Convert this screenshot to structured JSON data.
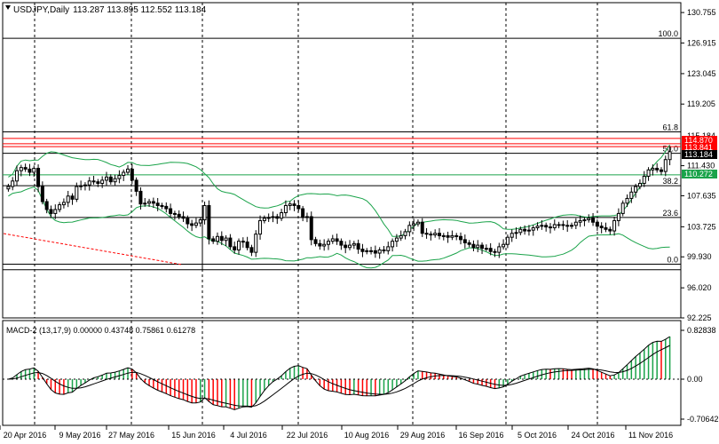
{
  "header": {
    "title": "USDJPY,Daily",
    "ohlc": "113.287 113.895 112.552 113.184"
  },
  "macd_header": {
    "label": "MACD-2 (13,17,9) 0.00000 0.43748 0.75861 0.61278"
  },
  "price_axis": [
    "130.755",
    "126.915",
    "123.045",
    "119.205",
    "115.184",
    "111.430",
    "107.635",
    "103.725",
    "99.930",
    "96.020",
    "92.225"
  ],
  "macd_axis": [
    "0.82838",
    "0.00",
    "-0.70642"
  ],
  "date_axis": [
    "20 Apr 2016",
    "9 May 2016",
    "27 May 2016",
    "15 Jun 2016",
    "4 Jul 2016",
    "22 Jul 2016",
    "10 Aug 2016",
    "29 Aug 2016",
    "16 Sep 2016",
    "5 Oct 2016",
    "24 Oct 2016",
    "11 Nov 2016"
  ],
  "fib_levels": [
    {
      "label": "100.0",
      "price": 127.5
    },
    {
      "label": "61.8",
      "price": 115.7
    },
    {
      "label": "50.0",
      "price": 113.0
    },
    {
      "label": "38.2",
      "price": 108.9
    },
    {
      "label": "23.6",
      "price": 104.9
    },
    {
      "label": "0.0",
      "price": 99.0
    }
  ],
  "price_tags": [
    {
      "text": "114.870",
      "price": 114.87,
      "color": "#ff0000"
    },
    {
      "text": "113.841",
      "price": 113.841,
      "color": "#ff0000"
    },
    {
      "text": "113.184",
      "price": 113.184,
      "color": "#000000"
    },
    {
      "text": "110.272",
      "price": 110.272,
      "color": "#1aa34a"
    }
  ],
  "colors": {
    "bull_candle": "#000000",
    "bear_candle": "#000000",
    "bollinger": "#1aa34a",
    "fib_line": "#000000",
    "red_lines": "#ff0000",
    "green_line": "#1aa34a",
    "macd_up": "#1aa34a",
    "macd_down": "#ff0000",
    "trend_dotted": "#ff0000"
  },
  "chart_data": {
    "type": "candlestick",
    "symbol": "USDJPY",
    "timeframe": "Daily",
    "ylim": [
      92.225,
      132.0
    ],
    "closes": [
      108.8,
      109.5,
      110.8,
      111.2,
      111.0,
      110.6,
      111.1,
      108.8,
      106.9,
      105.9,
      105.4,
      105.9,
      106.5,
      106.8,
      107.6,
      107.2,
      108.8,
      108.9,
      109.0,
      109.5,
      109.4,
      109.2,
      109.6,
      110.0,
      109.4,
      109.8,
      110.2,
      110.6,
      111.0,
      109.6,
      108.2,
      106.6,
      106.7,
      106.9,
      106.7,
      106.4,
      106.3,
      106.0,
      105.4,
      105.3,
      105.0,
      104.8,
      104.1,
      103.9,
      104.2,
      104.6,
      106.4,
      102.2,
      101.9,
      102.5,
      102.0,
      102.3,
      101.2,
      100.8,
      101.9,
      101.8,
      101.1,
      100.5,
      102.8,
      104.5,
      104.8,
      104.9,
      105.0,
      104.8,
      105.5,
      106.4,
      106.6,
      106.4,
      106.0,
      104.9,
      105.0,
      102.1,
      101.6,
      101.3,
      101.5,
      101.9,
      102.2,
      101.9,
      101.4,
      101.1,
      101.4,
      101.6,
      100.9,
      100.6,
      100.7,
      100.7,
      100.4,
      100.8,
      100.7,
      101.2,
      101.9,
      102.3,
      102.6,
      103.1,
      103.9,
      104.1,
      104.3,
      102.9,
      102.8,
      102.7,
      102.9,
      102.6,
      102.6,
      102.4,
      102.6,
      102.5,
      102.1,
      101.7,
      101.5,
      101.1,
      101.4,
      101.0,
      101.0,
      100.6,
      100.5,
      101.2,
      101.5,
      102.4,
      102.9,
      103.0,
      103.4,
      103.2,
      103.3,
      103.6,
      103.8,
      103.9,
      103.7,
      103.6,
      104.0,
      104.0,
      103.9,
      103.8,
      103.9,
      104.3,
      104.5,
      104.6,
      104.8,
      104.3,
      103.8,
      103.6,
      103.4,
      103.2,
      104.5,
      105.4,
      106.7,
      107.3,
      108.1,
      108.8,
      109.2,
      110.1,
      110.9,
      111.1,
      110.9,
      110.7,
      112.2,
      113.2
    ],
    "macd_histogram_range": [
      -0.70642,
      0.82838
    ],
    "macd_params": [
      13,
      17,
      9
    ]
  }
}
